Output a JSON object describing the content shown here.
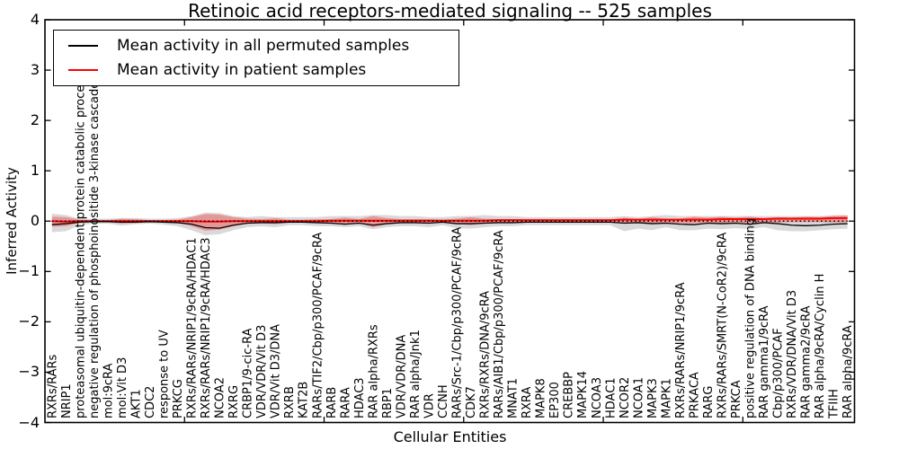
{
  "title": "Retinoic acid receptors-mediated signaling -- 525 samples",
  "legend": {
    "items": [
      {
        "label": "Mean activity in all permuted samples",
        "color": "#000000"
      },
      {
        "label": "Mean activity in patient samples",
        "color": "#ff0000"
      }
    ]
  },
  "chart_data": {
    "type": "line",
    "title": "Retinoic acid receptors-mediated signaling -- 525 samples",
    "xlabel": "Cellular Entities",
    "ylabel": "Inferred Activity",
    "ylim": [
      -4,
      4
    ],
    "ytick_values": [
      4,
      3,
      2,
      1,
      0,
      -1,
      -2,
      -3,
      -4
    ],
    "ytick_labels": [
      "4",
      "3",
      "2",
      "1",
      "0",
      "−1",
      "−2",
      "−3",
      "−4"
    ],
    "xtick_values": [
      10,
      20,
      30,
      40,
      50
    ],
    "grid": false,
    "legend_position": "upper left",
    "zero_line": 0,
    "categories": [
      "RXRs/RARs",
      "NRIP1",
      "proteasomal ubiquitin-dependent protein catabolic process",
      "negative regulation of phosphoinositide 3-kinase cascade",
      "mol:9cRA",
      "mol:Vit D3",
      "AKT1",
      "CDC2",
      "response to UV",
      "PRKCG",
      "RXRs/RARs/NRIP1/9cRA/HDAC1",
      "RXRs/RARs/NRIP1/9cRA/HDAC3",
      "NCOA2",
      "RXRG",
      "CRBP1/9-cic-RA",
      "VDR/VDR/Vit D3",
      "VDR/Vit D3/DNA",
      "RXRB",
      "KAT2B",
      "RARs/TIF2/Cbp/p300/PCAF/9cRA",
      "RARB",
      "RARA",
      "HDAC3",
      "RAR alpha/RXRs",
      "RBP1",
      "VDR/VDR/DNA",
      "RAR alpha/Jnk1",
      "VDR",
      "CCNH",
      "RARs/Src-1/Cbp/p300/PCAF/9cRA",
      "CDK7",
      "RXRs/RXRs/DNA/9cRA",
      "RARs/AIB1/Cbp/p300/PCAF/9cRA",
      "MNAT1",
      "RXRA",
      "MAPK8",
      "EP300",
      "CREBBP",
      "MAPK14",
      "NCOA3",
      "HDAC1",
      "NCOR2",
      "NCOA1",
      "MAPK3",
      "MAPK1",
      "RXRs/RARs/NRIP1/9cRA",
      "PRKACA",
      "RARG",
      "RXRs/RARs/SMRT(N-CoR2)/9cRA",
      "PRKCA",
      "positive regulation of DNA binding",
      "RAR gamma1/9cRA",
      "Cbp/p300/PCAF",
      "RXRs/VDR/DNA/Vit D3",
      "RAR gamma2/9cRA",
      "RAR alpha/9cRA/Cyclin H",
      "TFIIH",
      "RAR alpha/9cRA"
    ],
    "series": [
      {
        "name": "Mean activity in all permuted samples",
        "color": "#000000",
        "width": 1.3,
        "values": [
          -0.07,
          -0.05,
          -0.02,
          -0.01,
          -0.01,
          -0.02,
          -0.02,
          -0.01,
          -0.02,
          -0.03,
          -0.06,
          -0.13,
          -0.14,
          -0.08,
          -0.04,
          -0.03,
          -0.03,
          -0.02,
          -0.02,
          -0.03,
          -0.04,
          -0.06,
          -0.04,
          -0.08,
          -0.05,
          -0.03,
          -0.03,
          -0.04,
          -0.02,
          -0.05,
          -0.05,
          -0.04,
          -0.03,
          -0.03,
          -0.02,
          -0.02,
          -0.02,
          -0.02,
          -0.02,
          -0.02,
          -0.02,
          -0.04,
          -0.03,
          -0.05,
          -0.04,
          -0.06,
          -0.07,
          -0.04,
          -0.05,
          -0.04,
          -0.06,
          -0.03,
          -0.05,
          -0.08,
          -0.09,
          -0.08,
          -0.06,
          -0.05
        ]
      },
      {
        "name": "Mean activity in patient samples",
        "color": "#ff0000",
        "width": 2,
        "values": [
          0.0,
          -0.01,
          0.0,
          0.0,
          0.0,
          0.0,
          0.0,
          0.0,
          0.0,
          0.0,
          0.0,
          -0.01,
          -0.01,
          0.0,
          0.0,
          0.0,
          0.0,
          0.0,
          0.0,
          0.0,
          0.01,
          0.01,
          0.01,
          0.01,
          0.01,
          0.01,
          0.01,
          0.01,
          0.01,
          0.01,
          0.01,
          0.01,
          0.02,
          0.02,
          0.02,
          0.02,
          0.02,
          0.02,
          0.02,
          0.02,
          0.02,
          0.03,
          0.03,
          0.03,
          0.03,
          0.03,
          0.03,
          0.03,
          0.04,
          0.04,
          0.04,
          0.04,
          0.05,
          0.05,
          0.05,
          0.05,
          0.06,
          0.06
        ]
      }
    ],
    "bands": [
      {
        "name": "permuted-samples-std-band",
        "color": "rgba(0,0,0,0.15)",
        "upper": [
          0.15,
          0.12,
          0.05,
          0.05,
          0.05,
          0.06,
          0.06,
          0.05,
          0.05,
          0.06,
          0.1,
          0.17,
          0.16,
          0.1,
          0.08,
          0.1,
          0.08,
          0.08,
          0.08,
          0.08,
          0.1,
          0.1,
          0.1,
          0.12,
          0.12,
          0.1,
          0.1,
          0.08,
          0.08,
          0.1,
          0.1,
          0.12,
          0.1,
          0.1,
          0.08,
          0.08,
          0.08,
          0.08,
          0.08,
          0.08,
          0.08,
          0.1,
          0.08,
          0.1,
          0.12,
          0.1,
          0.1,
          0.1,
          0.1,
          0.1,
          0.1,
          0.1,
          0.1,
          0.1,
          0.1,
          0.1,
          0.12,
          0.12
        ],
        "lower": [
          -0.22,
          -0.2,
          -0.08,
          -0.05,
          -0.05,
          -0.09,
          -0.06,
          -0.05,
          -0.07,
          -0.1,
          -0.18,
          -0.28,
          -0.26,
          -0.18,
          -0.12,
          -0.1,
          -0.12,
          -0.08,
          -0.08,
          -0.1,
          -0.1,
          -0.12,
          -0.1,
          -0.16,
          -0.12,
          -0.1,
          -0.1,
          -0.12,
          -0.08,
          -0.14,
          -0.15,
          -0.12,
          -0.1,
          -0.1,
          -0.08,
          -0.08,
          -0.08,
          -0.08,
          -0.08,
          -0.08,
          -0.08,
          -0.2,
          -0.15,
          -0.18,
          -0.12,
          -0.18,
          -0.18,
          -0.15,
          -0.16,
          -0.14,
          -0.16,
          -0.12,
          -0.18,
          -0.2,
          -0.2,
          -0.18,
          -0.16,
          -0.15
        ]
      },
      {
        "name": "patient-samples-std-band",
        "color": "rgba(255,0,0,0.30)",
        "upper": [
          0.09,
          0.08,
          0.03,
          0.02,
          0.02,
          0.05,
          0.04,
          0.02,
          0.02,
          0.03,
          0.08,
          0.14,
          0.13,
          0.08,
          0.05,
          0.04,
          0.06,
          0.03,
          0.03,
          0.04,
          0.04,
          0.07,
          0.04,
          0.1,
          0.06,
          0.04,
          0.04,
          0.04,
          0.03,
          0.05,
          0.08,
          0.05,
          0.04,
          0.04,
          0.03,
          0.03,
          0.03,
          0.03,
          0.03,
          0.03,
          0.03,
          0.07,
          0.04,
          0.08,
          0.05,
          0.05,
          0.09,
          0.07,
          0.09,
          0.07,
          0.09,
          0.06,
          0.08,
          0.07,
          0.09,
          0.08,
          0.1,
          0.11
        ],
        "lower": [
          -0.11,
          -0.1,
          -0.03,
          -0.02,
          -0.02,
          -0.05,
          -0.04,
          -0.02,
          -0.02,
          -0.03,
          -0.1,
          -0.19,
          -0.17,
          -0.1,
          -0.05,
          -0.04,
          -0.06,
          -0.03,
          -0.03,
          -0.04,
          -0.04,
          -0.07,
          -0.04,
          -0.12,
          -0.06,
          -0.04,
          -0.04,
          -0.04,
          -0.03,
          -0.05,
          -0.08,
          -0.05,
          -0.04,
          -0.04,
          -0.03,
          -0.03,
          -0.03,
          -0.03,
          -0.03,
          -0.03,
          -0.03,
          -0.05,
          -0.03,
          -0.06,
          -0.04,
          -0.04,
          -0.04,
          -0.03,
          -0.04,
          -0.03,
          -0.04,
          -0.03,
          -0.03,
          -0.02,
          -0.02,
          -0.02,
          -0.03,
          -0.02
        ]
      }
    ]
  }
}
